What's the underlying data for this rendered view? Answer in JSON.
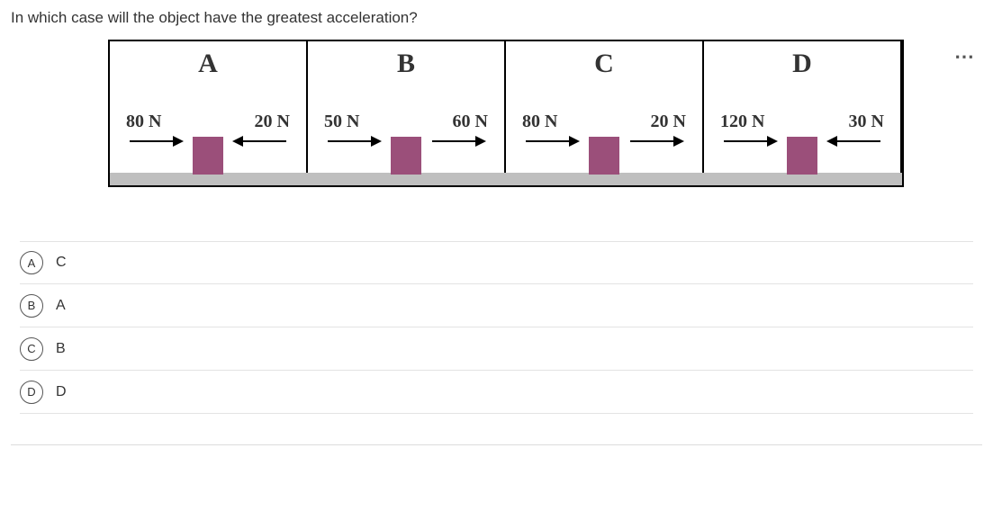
{
  "question": "In which case will the object have the greatest acceleration?",
  "more_icon_symbol": "⋯",
  "panels": [
    {
      "letter": "A",
      "left_force": "80 N",
      "right_force": "20 N",
      "left_arrow_dir": "right",
      "right_arrow_dir": "left"
    },
    {
      "letter": "B",
      "left_force": "50 N",
      "right_force": "60 N",
      "left_arrow_dir": "right",
      "right_arrow_dir": "right"
    },
    {
      "letter": "C",
      "left_force": "80 N",
      "right_force": "20 N",
      "left_arrow_dir": "right",
      "right_arrow_dir": "right"
    },
    {
      "letter": "D",
      "left_force": "120 N",
      "right_force": "30 N",
      "left_arrow_dir": "right",
      "right_arrow_dir": "left"
    }
  ],
  "options": [
    {
      "letter": "A",
      "text": "C"
    },
    {
      "letter": "B",
      "text": "A"
    },
    {
      "letter": "C",
      "text": "B"
    },
    {
      "letter": "D",
      "text": "D"
    }
  ],
  "colors": {
    "box": "#9b4f7a",
    "ground": "#bfbfbf",
    "border": "#000000",
    "option_border": "#e3e3e3"
  }
}
